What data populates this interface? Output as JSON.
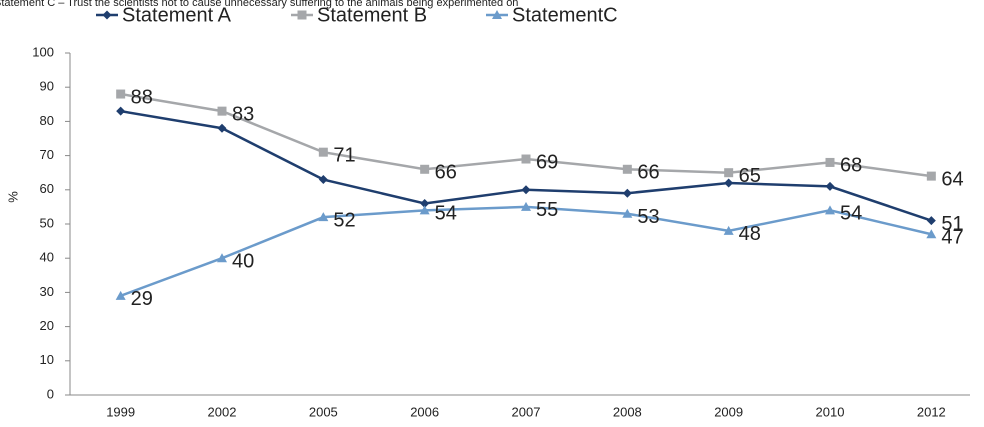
{
  "chart_data": {
    "type": "line",
    "subtitle": "Statement C – Trust the scientists not to cause unnecessary suffering to the animals being experimented on",
    "y_label": "%",
    "categories": [
      "1999",
      "2002",
      "2005",
      "2006",
      "2007",
      "2008",
      "2009",
      "2010",
      "2012"
    ],
    "series": [
      {
        "name": "Statement A",
        "color": "#1f3e6e",
        "marker": "diamond",
        "values": [
          83,
          78,
          63,
          56,
          60,
          59,
          62,
          61,
          51
        ],
        "data_labels": "last"
      },
      {
        "name": "Statement B",
        "color": "#a5a7aa",
        "marker": "square",
        "values": [
          88,
          83,
          71,
          66,
          69,
          66,
          65,
          68,
          64
        ],
        "data_labels": "all"
      },
      {
        "name": "StatementC",
        "color": "#6b9bcb",
        "marker": "triangle",
        "values": [
          29,
          40,
          52,
          54,
          55,
          53,
          48,
          54,
          47
        ],
        "data_labels": "all"
      }
    ],
    "ylim": [
      0,
      100
    ],
    "yticks": [
      0,
      10,
      20,
      30,
      40,
      50,
      60,
      70,
      80,
      90,
      100
    ],
    "grid": false,
    "legend": "top"
  }
}
